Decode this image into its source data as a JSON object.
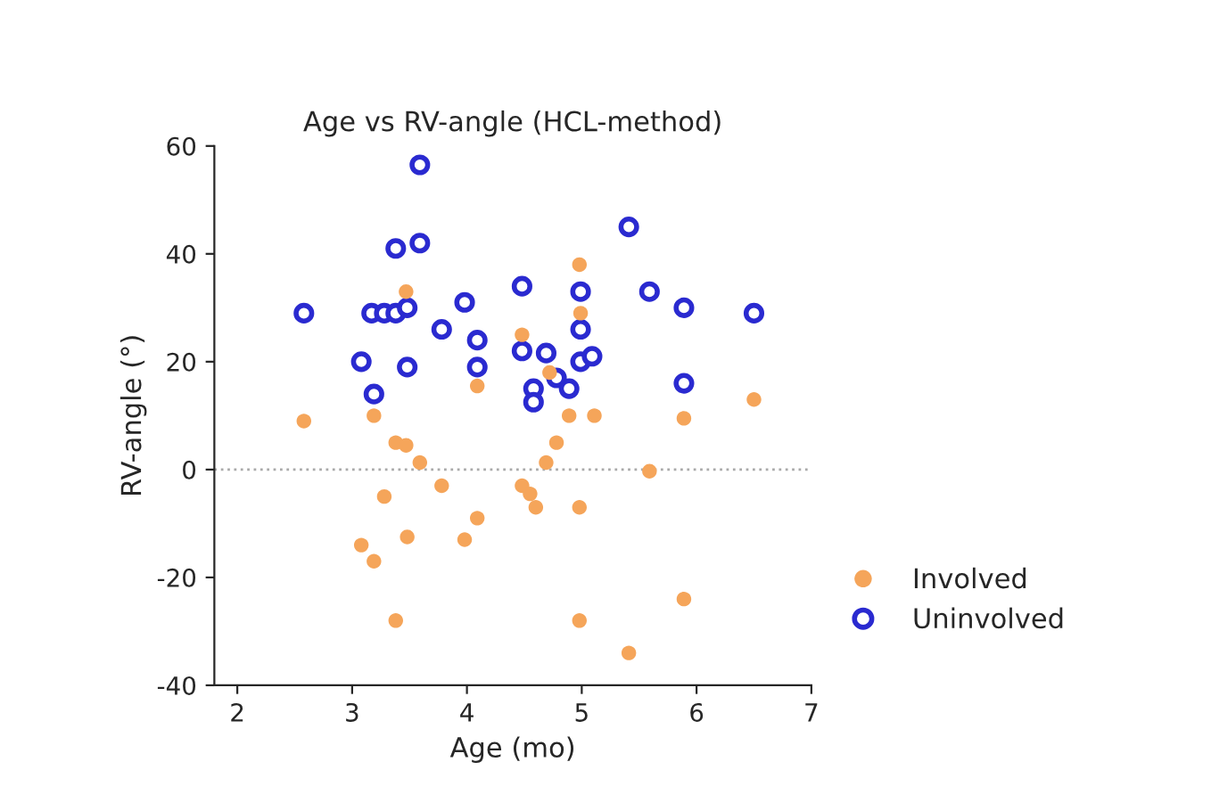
{
  "chart_data": {
    "type": "scatter",
    "title": "Age vs RV-angle (HCL-method)",
    "xlabel": "Age (mo)",
    "ylabel": "RV-angle (°)",
    "xlim": [
      1.8,
      7
    ],
    "xticks": [
      2,
      3,
      4,
      5,
      6,
      7
    ],
    "ylim": [
      -40,
      60
    ],
    "yticks": [
      -40,
      -20,
      0,
      20,
      40,
      60
    ],
    "grid": false,
    "legend": "bottom right",
    "marker": "circle",
    "ref_lines": [
      {
        "axis": "y",
        "value": 0,
        "color": "#aaaaaa",
        "line_style": "dotted"
      }
    ],
    "series": [
      {
        "name": "Involved",
        "color": "#f5a55a",
        "x": [
          2.58,
          3.19,
          3.47,
          3.38,
          3.47,
          3.59,
          3.78,
          3.28,
          4.09,
          3.48,
          3.98,
          3.08,
          3.19,
          3.38,
          4.09,
          4.48,
          4.48,
          4.55,
          4.6,
          4.98,
          4.99,
          4.89,
          5.11,
          4.78,
          4.69,
          4.98,
          5.59,
          5.89,
          6.5,
          5.89,
          4.98,
          5.41,
          4.72
        ],
        "values": [
          9,
          10,
          33,
          5,
          4.5,
          1.3,
          -3,
          -5,
          -9,
          -12.5,
          -13,
          -14,
          -17,
          -28,
          15.5,
          25,
          -3,
          -4.5,
          -7,
          38,
          29,
          10,
          10,
          5,
          1.3,
          -7,
          -0.3,
          9.5,
          13,
          -24,
          -28,
          -34,
          18
        ]
      },
      {
        "name": "Uninvolved",
        "color": "#2a2ad0",
        "x": [
          2.58,
          3.08,
          3.17,
          3.19,
          3.28,
          3.38,
          3.38,
          3.48,
          3.48,
          3.59,
          3.59,
          3.78,
          3.98,
          4.09,
          4.09,
          4.48,
          4.48,
          4.58,
          4.58,
          4.69,
          4.78,
          4.89,
          4.99,
          4.99,
          4.99,
          5.09,
          5.41,
          5.59,
          5.89,
          5.89,
          6.5
        ],
        "values": [
          29,
          20,
          29,
          14,
          29,
          29,
          41,
          30,
          19,
          56.5,
          42,
          26,
          31,
          24,
          19,
          34,
          22,
          15,
          12.5,
          21.6,
          17,
          15,
          33,
          26,
          20,
          21,
          45,
          33,
          30,
          16,
          29
        ]
      }
    ]
  }
}
